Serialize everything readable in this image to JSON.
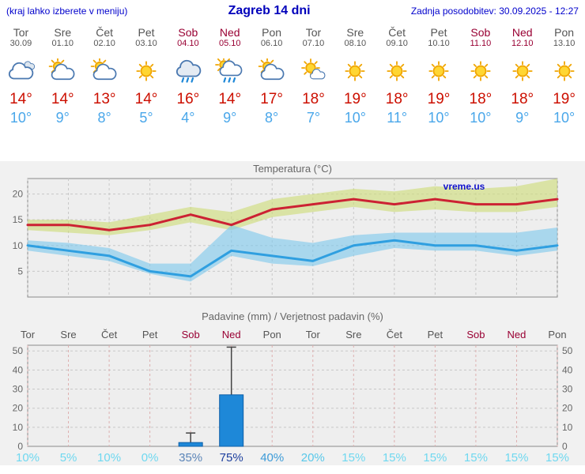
{
  "header": {
    "left_note": "(kraj lahko izberete v meniju)",
    "title": "Zagreb 14 dni",
    "last_update": "Zadnja posodobitev: 30.09.2025 - 12:27"
  },
  "colors": {
    "weekday_text": "#555555",
    "weekend_text": "#990033",
    "temp_max_text": "#cc0f00",
    "temp_min_text": "#4aa7ea",
    "chart_title_text": "#666666",
    "watermark_blue": "#1212cc",
    "bar_fill": "#1e88d8",
    "bar_stroke": "#0d5fa8",
    "max_line": "#cc2233",
    "max_band": "#cddc78",
    "min_line": "#2f9fe0",
    "min_band": "#7ec8ec"
  },
  "days": [
    {
      "name": "Tor",
      "date": "30.09",
      "weekend": false,
      "icon": "cloudy",
      "tmax": "14°",
      "tmin": "10°"
    },
    {
      "name": "Sre",
      "date": "01.10",
      "weekend": false,
      "icon": "partly-cloudy",
      "tmax": "14°",
      "tmin": "9°"
    },
    {
      "name": "Čet",
      "date": "02.10",
      "weekend": false,
      "icon": "partly-cloudy",
      "tmax": "13°",
      "tmin": "8°"
    },
    {
      "name": "Pet",
      "date": "03.10",
      "weekend": false,
      "icon": "sunny",
      "tmax": "14°",
      "tmin": "5°"
    },
    {
      "name": "Sob",
      "date": "04.10",
      "weekend": true,
      "icon": "rain",
      "tmax": "16°",
      "tmin": "4°"
    },
    {
      "name": "Ned",
      "date": "05.10",
      "weekend": true,
      "icon": "showers",
      "tmax": "14°",
      "tmin": "9°"
    },
    {
      "name": "Pon",
      "date": "06.10",
      "weekend": false,
      "icon": "partly-cloudy",
      "tmax": "17°",
      "tmin": "8°"
    },
    {
      "name": "Tor",
      "date": "07.10",
      "weekend": false,
      "icon": "mostly-sunny",
      "tmax": "18°",
      "tmin": "7°"
    },
    {
      "name": "Sre",
      "date": "08.10",
      "weekend": false,
      "icon": "sunny",
      "tmax": "19°",
      "tmin": "10°"
    },
    {
      "name": "Čet",
      "date": "09.10",
      "weekend": false,
      "icon": "sunny",
      "tmax": "18°",
      "tmin": "11°"
    },
    {
      "name": "Pet",
      "date": "10.10",
      "weekend": false,
      "icon": "sunny",
      "tmax": "19°",
      "tmin": "10°"
    },
    {
      "name": "Sob",
      "date": "11.10",
      "weekend": true,
      "icon": "sunny",
      "tmax": "18°",
      "tmin": "10°"
    },
    {
      "name": "Ned",
      "date": "12.10",
      "weekend": true,
      "icon": "sunny",
      "tmax": "18°",
      "tmin": "9°"
    },
    {
      "name": "Pon",
      "date": "13.10",
      "weekend": false,
      "icon": "sunny",
      "tmax": "19°",
      "tmin": "10°"
    }
  ],
  "chart_data": [
    {
      "type": "line",
      "title": "Temperatura (°C)",
      "watermark": "vreme.us",
      "x_labels": [
        "Tor",
        "Sre",
        "Čet",
        "Pet",
        "Sob",
        "Ned",
        "Pon",
        "Tor",
        "Sre",
        "Čet",
        "Pet",
        "Sob",
        "Ned",
        "Pon"
      ],
      "ylim": [
        0,
        23
      ],
      "yticks": [
        5,
        10,
        15,
        20
      ],
      "grid": true,
      "series": [
        {
          "name": "max-temp-range",
          "kind": "band",
          "color": "#cddc78",
          "upper": [
            15,
            15,
            14.5,
            16,
            17.5,
            16.5,
            19,
            20,
            21,
            20.5,
            21.5,
            21,
            21.5,
            23
          ],
          "lower": [
            13,
            12.5,
            12,
            13,
            14.5,
            13,
            15.5,
            16.5,
            17.5,
            16.5,
            17,
            16.5,
            16.5,
            17.5
          ]
        },
        {
          "name": "min-temp-range",
          "kind": "band",
          "color": "#7ec8ec",
          "upper": [
            11,
            10.5,
            9.5,
            6.5,
            6.5,
            14,
            11.5,
            10.5,
            12,
            12.5,
            12.5,
            12.5,
            12.5,
            13.5
          ],
          "lower": [
            9,
            8,
            7,
            4.5,
            3,
            8,
            6.5,
            6,
            8,
            9.5,
            9,
            9,
            8,
            9
          ]
        },
        {
          "name": "max-temp",
          "kind": "line",
          "color": "#cc2233",
          "values": [
            14,
            14,
            13,
            14,
            16,
            14,
            17,
            18,
            19,
            18,
            19,
            18,
            18,
            19
          ]
        },
        {
          "name": "min-temp",
          "kind": "line",
          "color": "#2f9fe0",
          "values": [
            10,
            9,
            8,
            5,
            4,
            9,
            8,
            7,
            10,
            11,
            10,
            10,
            9,
            10
          ]
        }
      ]
    },
    {
      "type": "bar",
      "title": "Padavine (mm) / Verjetnost padavin (%)",
      "categories": [
        "Tor",
        "Sre",
        "Čet",
        "Pet",
        "Sob",
        "Ned",
        "Pon",
        "Tor",
        "Sre",
        "Čet",
        "Pet",
        "Sob",
        "Ned",
        "Pon"
      ],
      "values": [
        0,
        0,
        0,
        0,
        2,
        27,
        0,
        0,
        0,
        0,
        0,
        0,
        0,
        0
      ],
      "whiskers": [
        0,
        0,
        0,
        0,
        7,
        52,
        0,
        0,
        0,
        0,
        0,
        0,
        0,
        0
      ],
      "ylim": [
        0,
        53
      ],
      "yticks": [
        0,
        10,
        20,
        30,
        40,
        50
      ],
      "grid": true,
      "probabilities": [
        "10%",
        "5%",
        "10%",
        "0%",
        "35%",
        "75%",
        "40%",
        "20%",
        "15%",
        "15%",
        "15%",
        "15%",
        "15%",
        "15%"
      ],
      "probability_colors": [
        "#6fd8f0",
        "#6fd8f0",
        "#6fd8f0",
        "#6fd8f0",
        "#5b85b8",
        "#1d3f9e",
        "#3d9bd8",
        "#58c8ea",
        "#6fd8f0",
        "#6fd8f0",
        "#6fd8f0",
        "#6fd8f0",
        "#6fd8f0",
        "#6fd8f0"
      ]
    }
  ]
}
